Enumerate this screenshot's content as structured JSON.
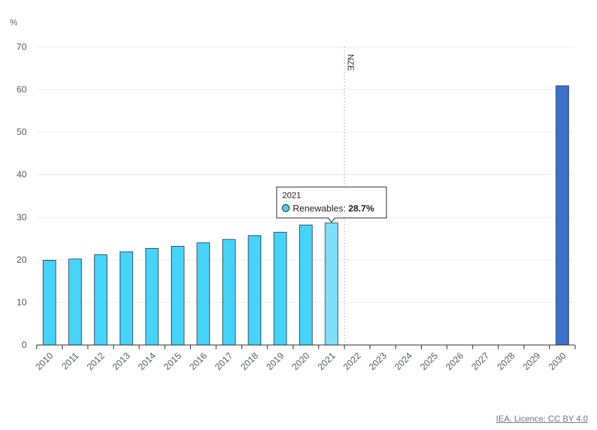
{
  "chart_data": {
    "type": "bar",
    "y_unit_label": "%",
    "ylim": [
      0,
      70
    ],
    "y_ticks": [
      0,
      10,
      20,
      30,
      40,
      50,
      60,
      70
    ],
    "grid": true,
    "categories": [
      "2010",
      "2011",
      "2012",
      "2013",
      "2014",
      "2015",
      "2016",
      "2017",
      "2018",
      "2019",
      "2020",
      "2021",
      "2022",
      "2023",
      "2024",
      "2025",
      "2026",
      "2027",
      "2028",
      "2029",
      "2030"
    ],
    "series": [
      {
        "name": "Renewables",
        "values": [
          19.9,
          20.2,
          21.2,
          21.9,
          22.7,
          23.2,
          24.0,
          24.8,
          25.7,
          26.5,
          28.2,
          28.7,
          null,
          null,
          null,
          null,
          null,
          null,
          null,
          null,
          60.9
        ]
      }
    ],
    "colors": {
      "historical": "#45d3fa",
      "highlighted": "#7fe0fb",
      "scenario": "#3a72cc",
      "outline": "#1f2933"
    },
    "scenario_marker": {
      "label": "NZE",
      "between": [
        "2021",
        "2022"
      ]
    },
    "tooltip": {
      "category": "2021",
      "series": "Renewables",
      "value_text": "28.7%"
    }
  },
  "credit": "IEA. Licence: CC BY 4.0"
}
